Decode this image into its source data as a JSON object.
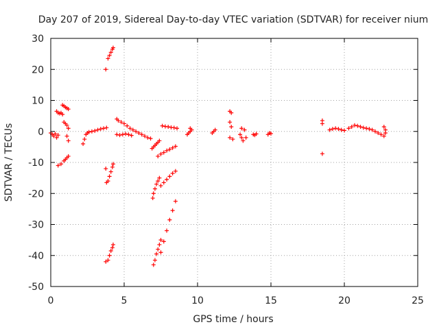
{
  "chart_data": {
    "type": "scatter",
    "title": "Day 207 of 2019, Sidereal Day-to-day VTEC variation (SDTVAR) for receiver nium",
    "xlabel": "GPS time / hours",
    "ylabel": "SDTVAR / TECUs",
    "xlim": [
      0,
      25
    ],
    "ylim": [
      -50,
      30
    ],
    "xticks": [
      0,
      5,
      10,
      15,
      20,
      25
    ],
    "yticks": [
      -50,
      -40,
      -30,
      -20,
      -10,
      0,
      10,
      20,
      30
    ],
    "grid": true,
    "series": [
      {
        "name": "SDTVAR",
        "marker": "plus",
        "color": "#ff0000",
        "points": [
          [
            0.0,
            -0.5
          ],
          [
            0.1,
            -1.0
          ],
          [
            0.2,
            -1.5
          ],
          [
            0.3,
            -0.8
          ],
          [
            0.4,
            -2.0
          ],
          [
            0.5,
            -1.2
          ],
          [
            0.4,
            6.5
          ],
          [
            0.5,
            6.0
          ],
          [
            0.6,
            5.8
          ],
          [
            0.7,
            6.0
          ],
          [
            0.8,
            5.5
          ],
          [
            0.8,
            8.5
          ],
          [
            0.9,
            8.2
          ],
          [
            1.0,
            7.8
          ],
          [
            1.1,
            7.5
          ],
          [
            1.2,
            7.2
          ],
          [
            0.9,
            3.0
          ],
          [
            1.0,
            2.5
          ],
          [
            1.1,
            2.0
          ],
          [
            1.2,
            1.0
          ],
          [
            1.1,
            -1.5
          ],
          [
            1.2,
            -3.0
          ],
          [
            0.5,
            -11.0
          ],
          [
            0.7,
            -10.5
          ],
          [
            0.9,
            -9.5
          ],
          [
            1.0,
            -9.0
          ],
          [
            1.1,
            -8.5
          ],
          [
            1.2,
            -8.0
          ],
          [
            2.2,
            -4.0
          ],
          [
            2.3,
            -2.5
          ],
          [
            2.4,
            -1.0
          ],
          [
            2.5,
            -0.5
          ],
          [
            2.6,
            -0.2
          ],
          [
            2.8,
            0.0
          ],
          [
            3.0,
            0.2
          ],
          [
            3.2,
            0.5
          ],
          [
            3.4,
            0.8
          ],
          [
            3.6,
            1.0
          ],
          [
            3.8,
            1.2
          ],
          [
            3.75,
            20.0
          ],
          [
            3.9,
            23.5
          ],
          [
            4.0,
            24.5
          ],
          [
            4.1,
            25.5
          ],
          [
            4.2,
            26.5
          ],
          [
            4.25,
            27.0
          ],
          [
            3.75,
            -12.0
          ],
          [
            3.8,
            -16.5
          ],
          [
            3.9,
            -16.0
          ],
          [
            4.0,
            -14.5
          ],
          [
            4.1,
            -13.0
          ],
          [
            4.2,
            -11.5
          ],
          [
            4.25,
            -10.5
          ],
          [
            3.75,
            -42.0
          ],
          [
            3.9,
            -41.5
          ],
          [
            4.0,
            -40.0
          ],
          [
            4.1,
            -38.5
          ],
          [
            4.2,
            -37.5
          ],
          [
            4.25,
            -36.5
          ],
          [
            4.5,
            4.0
          ],
          [
            4.6,
            3.5
          ],
          [
            4.8,
            3.0
          ],
          [
            5.0,
            2.5
          ],
          [
            5.2,
            1.8
          ],
          [
            5.4,
            1.0
          ],
          [
            5.6,
            0.5
          ],
          [
            5.8,
            0.0
          ],
          [
            6.0,
            -0.5
          ],
          [
            6.2,
            -1.0
          ],
          [
            6.4,
            -1.5
          ],
          [
            6.6,
            -2.0
          ],
          [
            6.8,
            -2.3
          ],
          [
            4.5,
            -1.0
          ],
          [
            4.7,
            -1.2
          ],
          [
            4.9,
            -1.0
          ],
          [
            5.1,
            -0.8
          ],
          [
            5.3,
            -1.0
          ],
          [
            5.5,
            -1.3
          ],
          [
            6.9,
            -5.5
          ],
          [
            7.0,
            -5.0
          ],
          [
            7.1,
            -4.5
          ],
          [
            7.2,
            -4.0
          ],
          [
            7.3,
            -3.5
          ],
          [
            7.4,
            -3.0
          ],
          [
            7.3,
            -8.0
          ],
          [
            7.5,
            -7.3
          ],
          [
            7.7,
            -6.8
          ],
          [
            7.9,
            -6.2
          ],
          [
            8.1,
            -5.8
          ],
          [
            8.3,
            -5.3
          ],
          [
            8.5,
            -4.8
          ],
          [
            6.95,
            -21.5
          ],
          [
            7.0,
            -20.0
          ],
          [
            7.1,
            -18.5
          ],
          [
            7.2,
            -17.0
          ],
          [
            7.3,
            -16.0
          ],
          [
            7.4,
            -15.0
          ],
          [
            7.5,
            -17.5
          ],
          [
            7.7,
            -16.5
          ],
          [
            7.9,
            -15.5
          ],
          [
            8.1,
            -14.5
          ],
          [
            8.3,
            -13.5
          ],
          [
            8.5,
            -12.8
          ],
          [
            7.0,
            -43.0
          ],
          [
            7.1,
            -41.5
          ],
          [
            7.2,
            -39.5
          ],
          [
            7.3,
            -38.0
          ],
          [
            7.4,
            -36.5
          ],
          [
            7.5,
            -35.0
          ],
          [
            7.5,
            -39.0
          ],
          [
            7.7,
            -35.5
          ],
          [
            7.9,
            -32.0
          ],
          [
            8.1,
            -28.5
          ],
          [
            8.3,
            -25.5
          ],
          [
            8.5,
            -22.5
          ],
          [
            7.6,
            1.8
          ],
          [
            7.8,
            1.6
          ],
          [
            8.0,
            1.5
          ],
          [
            8.2,
            1.3
          ],
          [
            8.4,
            1.2
          ],
          [
            8.6,
            1.0
          ],
          [
            9.3,
            -1.0
          ],
          [
            9.4,
            -0.5
          ],
          [
            9.5,
            0.0
          ],
          [
            9.6,
            0.5
          ],
          [
            9.5,
            1.0
          ],
          [
            11.0,
            -0.5
          ],
          [
            11.1,
            0.0
          ],
          [
            11.2,
            0.5
          ],
          [
            12.2,
            6.5
          ],
          [
            12.3,
            6.0
          ],
          [
            12.2,
            3.0
          ],
          [
            12.3,
            1.5
          ],
          [
            12.2,
            -2.0
          ],
          [
            12.4,
            -2.5
          ],
          [
            12.9,
            -1.0
          ],
          [
            13.0,
            -2.0
          ],
          [
            13.1,
            -3.0
          ],
          [
            13.0,
            1.0
          ],
          [
            13.2,
            0.5
          ],
          [
            13.3,
            -2.0
          ],
          [
            13.8,
            -1.0
          ],
          [
            13.9,
            -1.2
          ],
          [
            14.0,
            -0.8
          ],
          [
            14.8,
            -1.0
          ],
          [
            14.9,
            -0.5
          ],
          [
            15.0,
            -0.7
          ],
          [
            18.5,
            3.5
          ],
          [
            18.5,
            2.5
          ],
          [
            18.5,
            -7.2
          ],
          [
            19.0,
            0.5
          ],
          [
            19.2,
            0.8
          ],
          [
            19.4,
            1.0
          ],
          [
            19.6,
            0.8
          ],
          [
            19.8,
            0.5
          ],
          [
            20.0,
            0.3
          ],
          [
            20.3,
            1.0
          ],
          [
            20.5,
            1.5
          ],
          [
            20.7,
            2.0
          ],
          [
            20.9,
            1.8
          ],
          [
            21.1,
            1.5
          ],
          [
            21.3,
            1.2
          ],
          [
            21.5,
            1.0
          ],
          [
            21.7,
            0.8
          ],
          [
            21.9,
            0.5
          ],
          [
            22.1,
            0.0
          ],
          [
            22.3,
            -0.5
          ],
          [
            22.5,
            -1.0
          ],
          [
            22.7,
            1.5
          ],
          [
            22.8,
            0.5
          ],
          [
            22.8,
            -0.5
          ],
          [
            22.7,
            -1.5
          ]
        ]
      }
    ]
  }
}
